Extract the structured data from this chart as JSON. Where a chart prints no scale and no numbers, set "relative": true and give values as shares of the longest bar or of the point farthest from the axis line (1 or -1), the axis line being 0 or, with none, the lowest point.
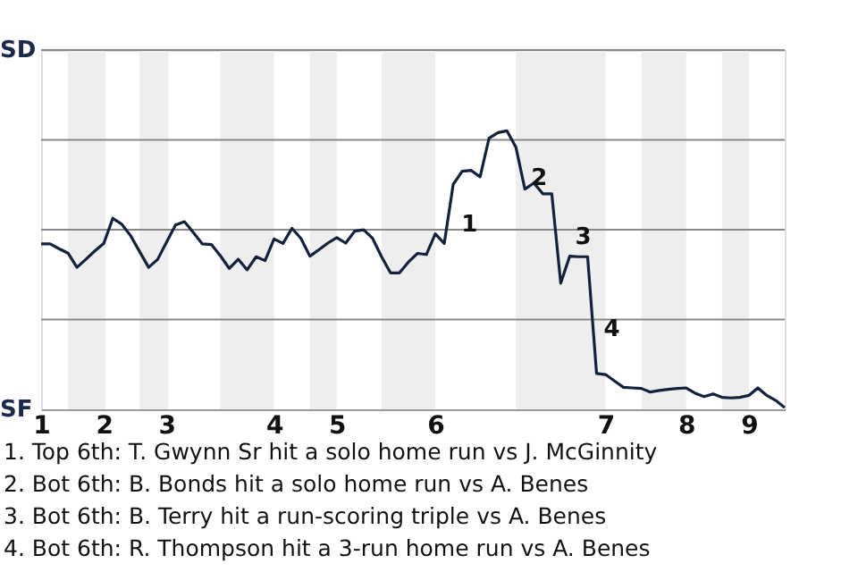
{
  "chart_data": {
    "type": "line",
    "relative": true,
    "categories": [
      "1",
      null,
      null,
      null,
      null,
      null,
      null,
      "2",
      null,
      null,
      null,
      null,
      null,
      null,
      "3",
      null,
      null,
      null,
      null,
      null,
      null,
      null,
      null,
      null,
      null,
      null,
      "4",
      null,
      null,
      null,
      null,
      null,
      null,
      "5",
      null,
      null,
      null,
      null,
      null,
      null,
      null,
      null,
      null,
      null,
      "6",
      null,
      null,
      null,
      null,
      null,
      null,
      null,
      null,
      null,
      null,
      null,
      null,
      null,
      null,
      null,
      null,
      null,
      null,
      "7",
      null,
      null,
      null,
      null,
      null,
      null,
      null,
      null,
      "8",
      null,
      null,
      null,
      null,
      null,
      null,
      "9",
      null,
      null,
      null,
      null
    ],
    "series": [
      {
        "color": "#14213d",
        "values": [
          0.594,
          0.594,
          0.577,
          0.561,
          0.51,
          0.539,
          0.569,
          0.596,
          0.686,
          0.665,
          0.623,
          0.566,
          0.51,
          0.538,
          0.6,
          0.662,
          0.674,
          0.635,
          0.594,
          0.592,
          0.552,
          0.506,
          0.539,
          0.501,
          0.548,
          0.534,
          0.612,
          0.596,
          0.65,
          0.614,
          0.55,
          0.573,
          0.597,
          0.617,
          0.597,
          0.64,
          0.645,
          0.614,
          0.548,
          0.49,
          0.49,
          0.529,
          0.56,
          0.556,
          0.63,
          0.596,
          0.808,
          0.855,
          0.858,
          0.835,
          0.974,
          0.994,
          1,
          0.941,
          0.791,
          0.813,
          0.774,
          0.774,
          0.453,
          0.55,
          0.548,
          0.548,
          0.129,
          0.125,
          0.102,
          0.079,
          0.077,
          0.075,
          0.062,
          0.068,
          0.072,
          0.075,
          0.077,
          0.058,
          0.046,
          0.055,
          0.043,
          0.041,
          0.043,
          0.05,
          0.077,
          0.05,
          0.032,
          0.006
        ]
      }
    ],
    "grid": "y",
    "annotations": [
      "SD",
      "SF",
      "1",
      "2",
      "3",
      "4",
      "1. Top 6th: T. Gwynn Sr hit a solo home run vs J. McGinnity",
      "2. Bot 6th: B. Bonds hit a solo home run vs A. Benes",
      "3. Bot 6th: B. Terry hit a run-scoring triple vs A. Benes",
      "4. Bot 6th: R. Thompson hit a 3-run home run vs A. Benes"
    ]
  }
}
